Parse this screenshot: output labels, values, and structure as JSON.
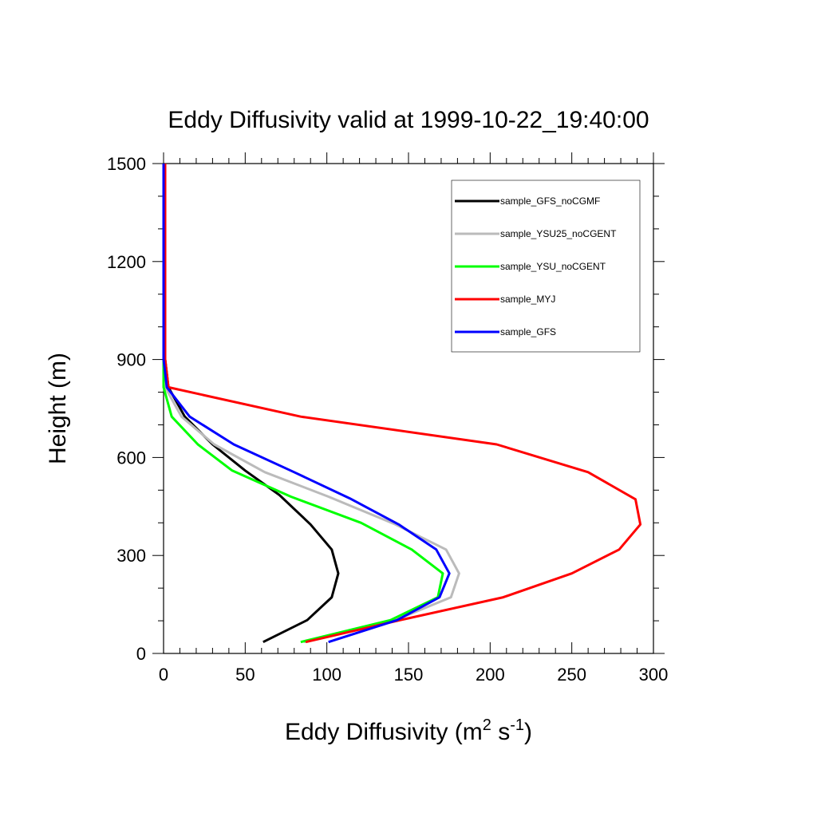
{
  "chart_data": {
    "type": "line",
    "title": "Eddy Diffusivity valid at 1999-10-22_19:40:00",
    "xlabel": "Eddy Diffusivity (m² s⁻¹)",
    "xlabel_base": "Eddy Diffusivity (m",
    "xlabel_sup1": "2",
    "xlabel_mid": " s",
    "xlabel_sup2": "-1",
    "xlabel_end": ")",
    "ylabel": "Height (m)",
    "xlim": [
      0,
      300
    ],
    "ylim": [
      0,
      1500
    ],
    "xticks": [
      0,
      50,
      100,
      150,
      200,
      250,
      300
    ],
    "yticks": [
      0,
      300,
      600,
      900,
      1200,
      1500
    ],
    "grid": false,
    "legend_position": "top-right",
    "series": [
      {
        "name": "sample_GFS_noCGMF",
        "color": "#000000",
        "points": [
          [
            61,
            35
          ],
          [
            88,
            102
          ],
          [
            103,
            172
          ],
          [
            107,
            245
          ],
          [
            103,
            318
          ],
          [
            90,
            395
          ],
          [
            71,
            485
          ],
          [
            50,
            560
          ],
          [
            30,
            640
          ],
          [
            13,
            725
          ],
          [
            3,
            815
          ],
          [
            1,
            900
          ],
          [
            1,
            1000
          ],
          [
            1,
            1100
          ],
          [
            1,
            1200
          ],
          [
            1,
            1300
          ],
          [
            1,
            1400
          ],
          [
            1,
            1500
          ]
        ]
      },
      {
        "name": "sample_YSU25_noCGENT",
        "color": "#bbbbbb",
        "points": [
          [
            86,
            35
          ],
          [
            142,
            102
          ],
          [
            176,
            172
          ],
          [
            181,
            245
          ],
          [
            173,
            318
          ],
          [
            142,
            395
          ],
          [
            101,
            480
          ],
          [
            62,
            555
          ],
          [
            31,
            640
          ],
          [
            11,
            725
          ],
          [
            1,
            815
          ],
          [
            0,
            900
          ],
          [
            0,
            1000
          ],
          [
            0,
            1100
          ],
          [
            0,
            1200
          ],
          [
            0,
            1300
          ],
          [
            0,
            1400
          ],
          [
            0,
            1500
          ]
        ]
      },
      {
        "name": "sample_YSU_noCGENT",
        "color": "#00ff00",
        "points": [
          [
            84,
            35
          ],
          [
            139,
            102
          ],
          [
            168,
            172
          ],
          [
            171,
            245
          ],
          [
            152,
            318
          ],
          [
            121,
            400
          ],
          [
            78,
            480
          ],
          [
            42,
            560
          ],
          [
            21,
            640
          ],
          [
            5,
            725
          ],
          [
            0,
            815
          ],
          [
            0,
            900
          ],
          [
            0,
            1000
          ],
          [
            0,
            1100
          ],
          [
            0,
            1200
          ],
          [
            0,
            1300
          ],
          [
            0,
            1400
          ],
          [
            0,
            1500
          ]
        ]
      },
      {
        "name": "sample_MYJ",
        "color": "#ff0000",
        "points": [
          [
            87,
            35
          ],
          [
            145,
            102
          ],
          [
            208,
            172
          ],
          [
            250,
            245
          ],
          [
            279,
            318
          ],
          [
            292,
            395
          ],
          [
            289,
            472
          ],
          [
            260,
            555
          ],
          [
            204,
            640
          ],
          [
            84,
            725
          ],
          [
            3,
            815
          ],
          [
            1,
            900
          ],
          [
            1,
            1000
          ],
          [
            1,
            1100
          ],
          [
            1,
            1200
          ],
          [
            1,
            1300
          ],
          [
            1,
            1400
          ],
          [
            1,
            1500
          ]
        ]
      },
      {
        "name": "sample_GFS",
        "color": "#0000ff",
        "points": [
          [
            101,
            35
          ],
          [
            143,
            102
          ],
          [
            169,
            172
          ],
          [
            175,
            245
          ],
          [
            167,
            318
          ],
          [
            144,
            395
          ],
          [
            114,
            475
          ],
          [
            80,
            555
          ],
          [
            43,
            640
          ],
          [
            16,
            725
          ],
          [
            2,
            815
          ],
          [
            0,
            900
          ],
          [
            0,
            1000
          ],
          [
            0,
            1100
          ],
          [
            0,
            1200
          ],
          [
            0,
            1300
          ],
          [
            0,
            1400
          ],
          [
            0,
            1500
          ]
        ]
      }
    ]
  }
}
